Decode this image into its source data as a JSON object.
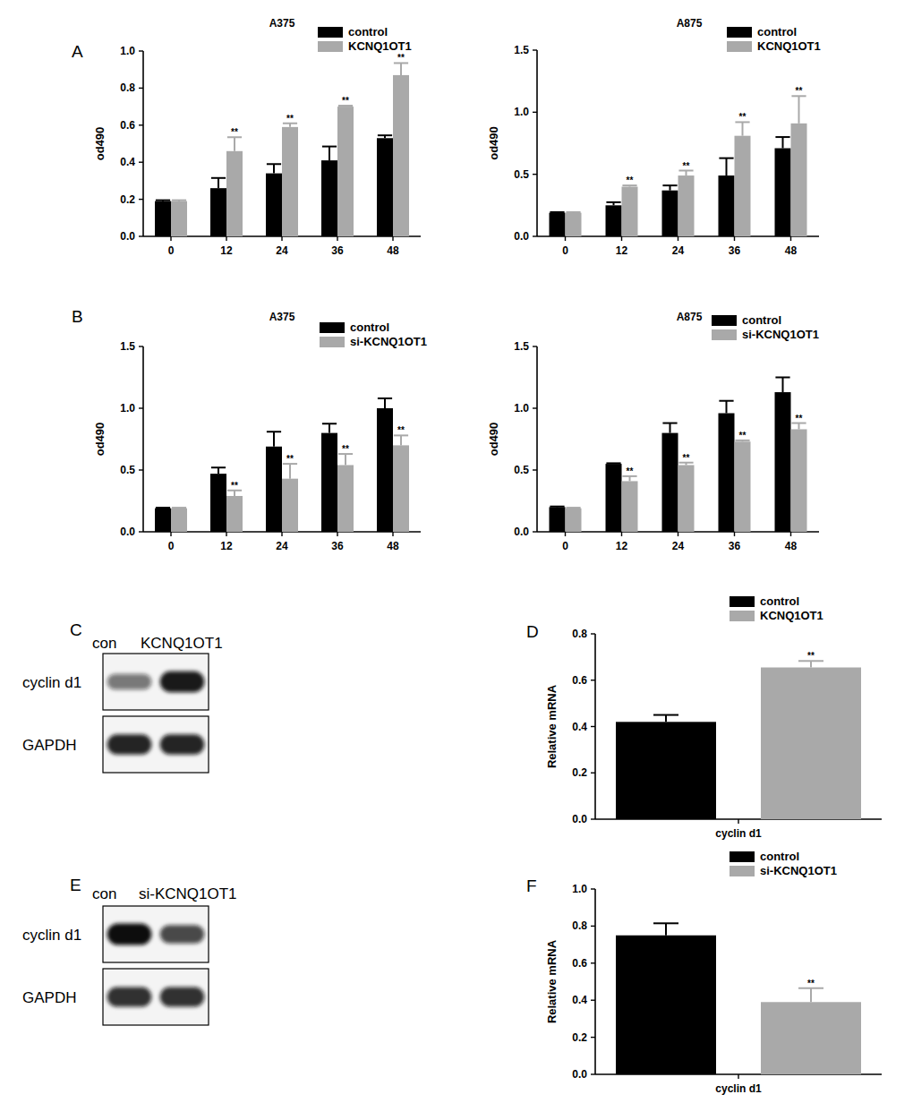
{
  "chart_data": [
    {
      "type": "bar",
      "title": "A375",
      "y_label": "od490",
      "annotations": [
        "A"
      ],
      "categories": [
        "0",
        "12",
        "24",
        "36",
        "48"
      ],
      "ylim": [
        0,
        1.0
      ],
      "yticks": [
        {
          "value": 0,
          "label": "0.0"
        },
        0.2,
        0.4,
        0.6,
        0.8,
        {
          "value": 1.0,
          "label": "1.0"
        }
      ],
      "legend": "top-right",
      "series": [
        {
          "name": "control",
          "color": "#000000",
          "values": [
            0.19,
            0.26,
            0.34,
            0.41,
            0.53
          ],
          "errors": [
            0.005,
            0.055,
            0.05,
            0.075,
            0.015
          ],
          "significance": [
            null,
            null,
            null,
            null,
            null
          ]
        },
        {
          "name": "KCNQ1OT1",
          "color": "#a9a9a9",
          "values": [
            0.19,
            0.46,
            0.59,
            0.7,
            0.87
          ],
          "errors": [
            0.005,
            0.075,
            0.02,
            0.005,
            0.065
          ],
          "significance": [
            null,
            "**",
            "**",
            "**",
            "**"
          ]
        }
      ]
    },
    {
      "type": "bar",
      "title": "A875",
      "y_label": "od490",
      "categories": [
        "0",
        "12",
        "24",
        "36",
        "48"
      ],
      "ylim": [
        0,
        1.5
      ],
      "yticks": [
        {
          "value": 0,
          "label": "0.0"
        },
        0.5,
        {
          "value": 1.0,
          "label": "1.0"
        },
        1.5
      ],
      "legend": "top-right",
      "series": [
        {
          "name": "control",
          "color": "#000000",
          "values": [
            0.19,
            0.25,
            0.37,
            0.49,
            0.71
          ],
          "errors": [
            0.005,
            0.025,
            0.04,
            0.14,
            0.09
          ],
          "significance": [
            null,
            null,
            null,
            null,
            null
          ]
        },
        {
          "name": "KCNQ1OT1",
          "color": "#a9a9a9",
          "values": [
            0.19,
            0.4,
            0.49,
            0.81,
            0.91
          ],
          "errors": [
            0.005,
            0.01,
            0.04,
            0.11,
            0.22
          ],
          "significance": [
            null,
            "**",
            "**",
            "**",
            "**"
          ]
        }
      ]
    },
    {
      "type": "bar",
      "title": "A375",
      "y_label": "od490",
      "annotations": [
        "B"
      ],
      "categories": [
        "0",
        "12",
        "24",
        "36",
        "48"
      ],
      "ylim": [
        0,
        1.5
      ],
      "yticks": [
        {
          "value": 0,
          "label": "0.0"
        },
        0.5,
        {
          "value": 1.0,
          "label": "1.0"
        },
        1.5
      ],
      "legend": "top-right",
      "series": [
        {
          "name": "control",
          "color": "#000000",
          "values": [
            0.19,
            0.47,
            0.69,
            0.8,
            1.0
          ],
          "errors": [
            0.005,
            0.05,
            0.12,
            0.075,
            0.08
          ],
          "significance": [
            null,
            null,
            null,
            null,
            null
          ]
        },
        {
          "name": "si-KCNQ1OT1",
          "color": "#a9a9a9",
          "values": [
            0.19,
            0.29,
            0.43,
            0.54,
            0.7
          ],
          "errors": [
            0.005,
            0.045,
            0.12,
            0.09,
            0.08
          ],
          "significance": [
            null,
            "**",
            "**",
            "**",
            "**"
          ]
        }
      ]
    },
    {
      "type": "bar",
      "title": "A875",
      "y_label": "od490",
      "categories": [
        "0",
        "12",
        "24",
        "36",
        "48"
      ],
      "ylim": [
        0,
        1.5
      ],
      "yticks": [
        {
          "value": 0,
          "label": "0.0"
        },
        0.5,
        {
          "value": 1.0,
          "label": "1.0"
        },
        1.5
      ],
      "legend": "top-right",
      "series": [
        {
          "name": "control",
          "color": "#000000",
          "values": [
            0.2,
            0.55,
            0.8,
            0.96,
            1.13
          ],
          "errors": [
            0.005,
            0.005,
            0.08,
            0.1,
            0.12
          ],
          "significance": [
            null,
            null,
            null,
            null,
            null
          ]
        },
        {
          "name": "si-KCNQ1OT1",
          "color": "#a9a9a9",
          "values": [
            0.19,
            0.41,
            0.54,
            0.73,
            0.83
          ],
          "errors": [
            0.005,
            0.04,
            0.02,
            0.01,
            0.05
          ],
          "significance": [
            null,
            "**",
            "**",
            "**",
            "**"
          ]
        }
      ]
    },
    {
      "type": "blot",
      "annotations": [
        "C"
      ],
      "lanes": [
        "con",
        "KCNQ1OT1"
      ],
      "rows": [
        {
          "name": "cyclin d1",
          "values": [
            0.55,
            0.95
          ]
        },
        {
          "name": "GAPDH",
          "values": [
            0.9,
            0.9
          ]
        }
      ]
    },
    {
      "type": "bar",
      "y_label": "Relative mRNA",
      "annotations": [
        "D"
      ],
      "categories": [
        "cyclin d1"
      ],
      "ylim": [
        0,
        0.8
      ],
      "yticks": [
        {
          "value": 0,
          "label": "0.0"
        },
        0.2,
        0.4,
        0.6,
        0.8
      ],
      "legend": "top-right",
      "series": [
        {
          "name": "control",
          "color": "#000000",
          "values": [
            0.42
          ],
          "errors": [
            0.03
          ],
          "significance": [
            null
          ]
        },
        {
          "name": "KCNQ1OT1",
          "color": "#a9a9a9",
          "values": [
            0.655
          ],
          "errors": [
            0.028
          ],
          "significance": [
            "**"
          ]
        }
      ]
    },
    {
      "type": "blot",
      "annotations": [
        "E"
      ],
      "lanes": [
        "con",
        "si-KCNQ1OT1"
      ],
      "rows": [
        {
          "name": "cyclin d1",
          "values": [
            1.0,
            0.75
          ]
        },
        {
          "name": "GAPDH",
          "values": [
            0.85,
            0.85
          ]
        }
      ]
    },
    {
      "type": "bar",
      "y_label": "Relative mRNA",
      "annotations": [
        "F"
      ],
      "categories": [
        "cyclin d1"
      ],
      "ylim": [
        0,
        1.0
      ],
      "yticks": [
        {
          "value": 0,
          "label": "0.0"
        },
        0.2,
        0.4,
        0.6,
        0.8,
        {
          "value": 1.0,
          "label": "1.0"
        }
      ],
      "legend": "top-right",
      "series": [
        {
          "name": "control",
          "color": "#000000",
          "values": [
            0.75
          ],
          "errors": [
            0.065
          ],
          "significance": [
            null
          ]
        },
        {
          "name": "si-KCNQ1OT1",
          "color": "#a9a9a9",
          "values": [
            0.39
          ],
          "errors": [
            0.075
          ],
          "significance": [
            "**"
          ]
        }
      ]
    }
  ]
}
